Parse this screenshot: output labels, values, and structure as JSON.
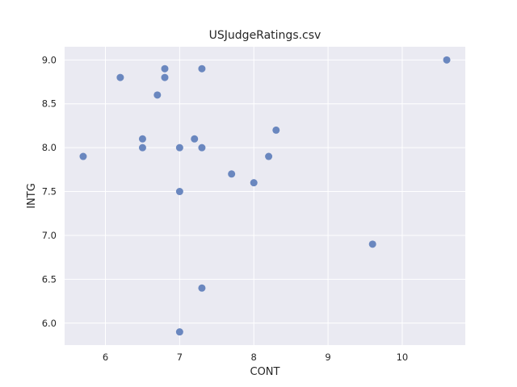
{
  "chart_data": {
    "type": "scatter",
    "title": "USJudgeRatings.csv",
    "xlabel": "CONT",
    "ylabel": "INTG",
    "xlim": [
      5.45,
      10.85
    ],
    "ylim": [
      5.75,
      9.15
    ],
    "xticks": [
      "6",
      "7",
      "8",
      "9",
      "10"
    ],
    "yticks": [
      "6.0",
      "6.5",
      "7.0",
      "7.5",
      "8.0",
      "8.5",
      "9.0"
    ],
    "grid": true,
    "background_color": "#EAEAF2",
    "marker_color": "#6A87BF",
    "points": [
      {
        "x": 5.7,
        "y": 7.9
      },
      {
        "x": 6.2,
        "y": 8.8
      },
      {
        "x": 6.5,
        "y": 8.1
      },
      {
        "x": 6.5,
        "y": 8.0
      },
      {
        "x": 6.7,
        "y": 8.6
      },
      {
        "x": 6.8,
        "y": 8.9
      },
      {
        "x": 6.8,
        "y": 8.8
      },
      {
        "x": 7.0,
        "y": 8.0
      },
      {
        "x": 7.0,
        "y": 7.5
      },
      {
        "x": 7.0,
        "y": 5.9
      },
      {
        "x": 7.2,
        "y": 8.1
      },
      {
        "x": 7.3,
        "y": 8.9
      },
      {
        "x": 7.3,
        "y": 8.0
      },
      {
        "x": 7.3,
        "y": 6.4
      },
      {
        "x": 7.7,
        "y": 7.7
      },
      {
        "x": 8.0,
        "y": 7.6
      },
      {
        "x": 8.2,
        "y": 7.9
      },
      {
        "x": 8.3,
        "y": 8.2
      },
      {
        "x": 9.6,
        "y": 6.9
      },
      {
        "x": 10.6,
        "y": 9.0
      }
    ]
  }
}
